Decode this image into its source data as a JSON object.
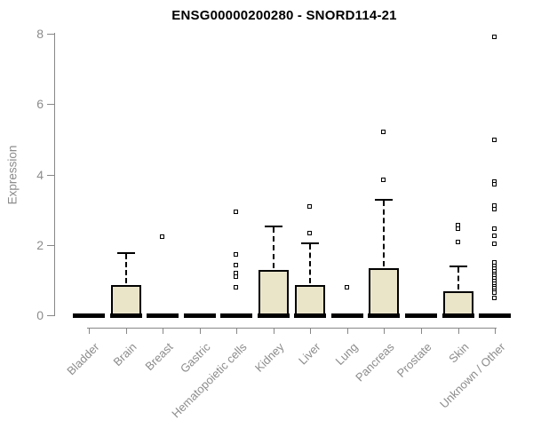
{
  "title": "ENSG00000200280 - SNORD114-21",
  "chart_data": {
    "type": "boxplot",
    "title": "ENSG00000200280 - SNORD114-21",
    "xlabel": "",
    "ylabel": "Expression",
    "ylim": [
      0,
      8
    ],
    "yticks": [
      0,
      2,
      4,
      6,
      8
    ],
    "grid": false,
    "legend": "none",
    "colors": {
      "box_fill": "#EAE4C9",
      "box_border": "#000000",
      "axis": "#878787",
      "tick_text": "#8C8C8C",
      "title_text": "#000000"
    },
    "categories": [
      "Bladder",
      "Brain",
      "Breast",
      "Gastric",
      "Hematopoietic cells",
      "Kidney",
      "Liver",
      "Lung",
      "Pancreas",
      "Prostate",
      "Skin",
      "Unknown / Other"
    ],
    "boxes": [
      {
        "label": "Bladder",
        "min": 0,
        "q1": 0,
        "median": 0,
        "q3": 0,
        "whisker_high": 0,
        "outliers": []
      },
      {
        "label": "Brain",
        "min": 0,
        "q1": 0,
        "median": 0,
        "q3": 0.85,
        "whisker_high": 1.8,
        "outliers": []
      },
      {
        "label": "Breast",
        "min": 0,
        "q1": 0,
        "median": 0,
        "q3": 0,
        "whisker_high": 0,
        "outliers": [
          2.22
        ]
      },
      {
        "label": "Gastric",
        "min": 0,
        "q1": 0,
        "median": 0,
        "q3": 0,
        "whisker_high": 0,
        "outliers": []
      },
      {
        "label": "Hematopoietic cells",
        "min": 0,
        "q1": 0,
        "median": 0,
        "q3": 0,
        "whisker_high": 0,
        "outliers": [
          2.93,
          1.72,
          1.41,
          1.18,
          1.08,
          0.78
        ]
      },
      {
        "label": "Kidney",
        "min": 0,
        "q1": 0,
        "median": 0,
        "q3": 1.3,
        "whisker_high": 2.55,
        "outliers": []
      },
      {
        "label": "Liver",
        "min": 0,
        "q1": 0,
        "median": 0,
        "q3": 0.86,
        "whisker_high": 2.06,
        "outliers": [
          3.08,
          2.32
        ]
      },
      {
        "label": "Lung",
        "min": 0,
        "q1": 0,
        "median": 0,
        "q3": 0,
        "whisker_high": 0,
        "outliers": [
          0.78
        ]
      },
      {
        "label": "Pancreas",
        "min": 0,
        "q1": 0,
        "median": 0,
        "q3": 1.33,
        "whisker_high": 3.3,
        "outliers": [
          5.2,
          3.85
        ]
      },
      {
        "label": "Prostate",
        "min": 0,
        "q1": 0,
        "median": 0,
        "q3": 0,
        "whisker_high": 0,
        "outliers": []
      },
      {
        "label": "Skin",
        "min": 0,
        "q1": 0,
        "median": 0,
        "q3": 0.68,
        "whisker_high": 1.42,
        "outliers": [
          2.55,
          2.45,
          2.06
        ]
      },
      {
        "label": "Unknown / Other",
        "min": 0,
        "q1": 0,
        "median": 0,
        "q3": 0,
        "whisker_high": 0,
        "outliers": [
          7.9,
          4.97,
          3.8,
          3.7,
          3.1,
          3.0,
          2.46,
          2.26,
          2.01,
          1.5,
          1.38,
          1.31,
          1.24,
          1.17,
          1.1,
          1.03,
          0.96,
          0.89,
          0.82,
          0.75,
          0.68,
          0.63,
          0.48
        ]
      }
    ]
  }
}
